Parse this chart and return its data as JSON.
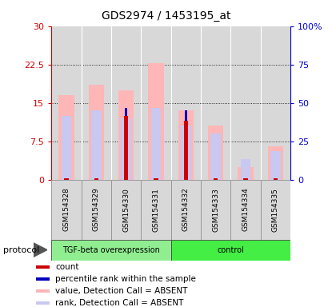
{
  "title": "GDS2974 / 1453195_at",
  "samples": [
    "GSM154328",
    "GSM154329",
    "GSM154330",
    "GSM154331",
    "GSM154332",
    "GSM154333",
    "GSM154334",
    "GSM154335"
  ],
  "group_labels": [
    "TGF-beta overexpression",
    "control"
  ],
  "group_spans": [
    4,
    4
  ],
  "group_colors": [
    "#90ee90",
    "#44ee44"
  ],
  "value_absent": [
    16.5,
    18.5,
    17.5,
    22.7,
    13.5,
    10.5,
    2.5,
    6.5
  ],
  "rank_absent": [
    12.5,
    13.5,
    12.0,
    14.0,
    10.5,
    9.0,
    4.0,
    5.5
  ],
  "count_present": [
    0.25,
    0.25,
    12.5,
    0.25,
    11.5,
    0.2,
    0.2,
    0.2
  ],
  "percentile_present": [
    0.0,
    0.0,
    1.5,
    0.0,
    2.0,
    0.0,
    0.0,
    0.0
  ],
  "ylim_left": [
    0,
    30
  ],
  "ylim_right": [
    0,
    100
  ],
  "yticks_left": [
    0,
    7.5,
    15,
    22.5,
    30
  ],
  "yticks_right": [
    0,
    25,
    50,
    75,
    100
  ],
  "ytick_labels_right": [
    "0",
    "25",
    "50",
    "75",
    "100%"
  ],
  "color_count": "#cc0000",
  "color_percentile": "#0000bb",
  "color_value_absent": "#ffb6b6",
  "color_rank_absent": "#c8c8f0",
  "left_axis_color": "#cc0000",
  "right_axis_color": "#0000cc",
  "cell_bg_color": "#d8d8d8",
  "legend_items": [
    {
      "color": "#cc0000",
      "label": "count"
    },
    {
      "color": "#0000bb",
      "label": "percentile rank within the sample"
    },
    {
      "color": "#ffb6b6",
      "label": "value, Detection Call = ABSENT"
    },
    {
      "color": "#c8c8f0",
      "label": "rank, Detection Call = ABSENT"
    }
  ]
}
